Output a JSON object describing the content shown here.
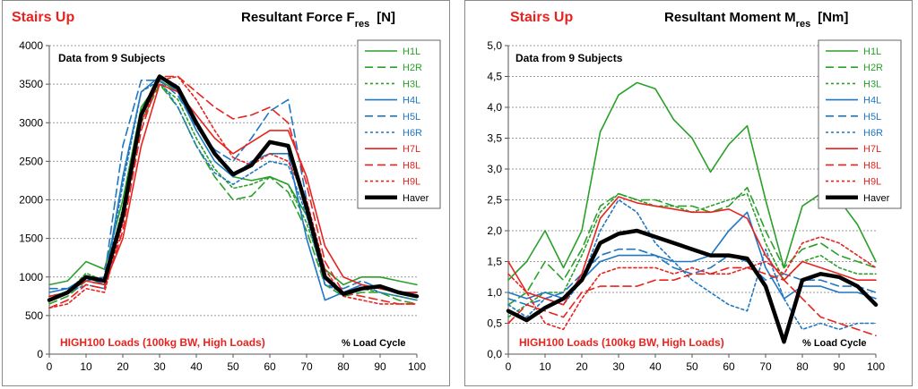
{
  "series_styles": [
    {
      "name": "H1L",
      "color": "#2aa02a",
      "dash": "",
      "width": 1.6
    },
    {
      "name": "H2R",
      "color": "#2aa02a",
      "dash": "9,5",
      "width": 1.6
    },
    {
      "name": "H3L",
      "color": "#2aa02a",
      "dash": "3,3",
      "width": 1.6
    },
    {
      "name": "H4L",
      "color": "#1f77c4",
      "dash": "",
      "width": 1.6
    },
    {
      "name": "H5L",
      "color": "#1f77c4",
      "dash": "9,5",
      "width": 1.6
    },
    {
      "name": "H6R",
      "color": "#1f77c4",
      "dash": "3,3",
      "width": 1.6
    },
    {
      "name": "H7L",
      "color": "#e8231f",
      "dash": "",
      "width": 1.6
    },
    {
      "name": "H8L",
      "color": "#e8231f",
      "dash": "9,5",
      "width": 1.6
    },
    {
      "name": "H9L",
      "color": "#e8231f",
      "dash": "3,3",
      "width": 1.6
    },
    {
      "name": "Haver",
      "color": "#000000",
      "dash": "",
      "width": 4.5
    }
  ],
  "chart_data": [
    {
      "type": "line",
      "activity": "Stairs Up",
      "title": "Resultant Force F",
      "title_subscript": "res",
      "unit": "[N]",
      "subtitle": "Data from 9 Subjects",
      "annotation": "HIGH100 Loads (100kg BW, High Loads)",
      "xlabel": "% Load Cycle",
      "xlim": [
        0,
        100
      ],
      "ylim": [
        0,
        4000
      ],
      "x_ticks": [
        "0",
        "10",
        "20",
        "30",
        "40",
        "50",
        "60",
        "70",
        "80",
        "90",
        "100"
      ],
      "y_ticks": [
        "0",
        "500",
        "1000",
        "1500",
        "2000",
        "2500",
        "3000",
        "3500",
        "4000"
      ],
      "grid": "horizontal-dotted",
      "legend_position": "top-right",
      "x": [
        0,
        5,
        10,
        15,
        20,
        25,
        30,
        35,
        40,
        45,
        50,
        55,
        60,
        65,
        70,
        75,
        80,
        85,
        90,
        95,
        100
      ],
      "series": [
        {
          "name": "H1L",
          "values": [
            900,
            950,
            1200,
            1100,
            2000,
            3200,
            3550,
            3400,
            3000,
            2600,
            2300,
            2250,
            2300,
            2200,
            1800,
            1100,
            900,
            1000,
            1000,
            950,
            900
          ]
        },
        {
          "name": "H2R",
          "values": [
            650,
            750,
            950,
            900,
            1800,
            3000,
            3500,
            3200,
            2700,
            2300,
            2000,
            2050,
            2300,
            2100,
            1600,
            900,
            750,
            800,
            800,
            700,
            650
          ]
        },
        {
          "name": "H3L",
          "values": [
            700,
            800,
            1050,
            950,
            1900,
            3100,
            3500,
            3300,
            2800,
            2400,
            2150,
            2200,
            2300,
            2200,
            1700,
            1000,
            800,
            850,
            800,
            750,
            700
          ]
        },
        {
          "name": "H4L",
          "values": [
            800,
            850,
            1000,
            900,
            2300,
            3400,
            3600,
            3400,
            2900,
            2500,
            2300,
            2500,
            2600,
            2600,
            1500,
            700,
            800,
            900,
            850,
            800,
            800
          ]
        },
        {
          "name": "H5L",
          "values": [
            850,
            850,
            950,
            1000,
            2700,
            3550,
            3550,
            3350,
            2950,
            2650,
            2500,
            2800,
            3150,
            3300,
            2000,
            900,
            850,
            950,
            850,
            800,
            800
          ]
        },
        {
          "name": "H6R",
          "values": [
            750,
            800,
            900,
            850,
            2200,
            3400,
            3550,
            3200,
            2700,
            2350,
            2200,
            2350,
            2500,
            2450,
            1800,
            900,
            800,
            900,
            800,
            750,
            700
          ]
        },
        {
          "name": "H7L",
          "values": [
            750,
            800,
            950,
            900,
            1500,
            2700,
            3500,
            3400,
            3100,
            2800,
            2600,
            2750,
            2900,
            2900,
            2300,
            1400,
            1000,
            900,
            850,
            800,
            800
          ]
        },
        {
          "name": "H8L",
          "values": [
            600,
            700,
            900,
            850,
            1600,
            2900,
            3600,
            3600,
            3400,
            3200,
            3050,
            3100,
            3200,
            3000,
            2200,
            1200,
            800,
            750,
            700,
            650,
            650
          ]
        },
        {
          "name": "H9L",
          "values": [
            600,
            650,
            850,
            800,
            1700,
            3000,
            3550,
            3600,
            3300,
            2900,
            2550,
            2450,
            2600,
            2500,
            2000,
            1100,
            750,
            700,
            650,
            650,
            650
          ]
        },
        {
          "name": "Haver",
          "values": [
            700,
            800,
            1000,
            950,
            1800,
            3100,
            3600,
            3450,
            3000,
            2600,
            2330,
            2450,
            2750,
            2700,
            1900,
            1000,
            780,
            850,
            880,
            800,
            750
          ]
        }
      ]
    },
    {
      "type": "line",
      "activity": "Stairs Up",
      "title": "Resultant Moment M",
      "title_subscript": "res",
      "unit": "[Nm]",
      "subtitle": "Data from 9 Subjects",
      "annotation": "HIGH100 Loads (100kg BW, High Loads)",
      "xlabel": "% Load Cycle",
      "xlim": [
        0,
        100
      ],
      "ylim": [
        0,
        5
      ],
      "x_ticks": [
        "0",
        "10",
        "20",
        "30",
        "40",
        "50",
        "60",
        "70",
        "80",
        "90",
        "100"
      ],
      "y_ticks": [
        "0,0",
        "0,5",
        "1,0",
        "1,5",
        "2,0",
        "2,5",
        "3,0",
        "3,5",
        "4,0",
        "4,5",
        "5,0"
      ],
      "grid": "horizontal-dotted",
      "legend_position": "top-right",
      "x": [
        0,
        5,
        10,
        15,
        20,
        25,
        30,
        35,
        40,
        45,
        50,
        55,
        60,
        65,
        70,
        75,
        80,
        85,
        90,
        95,
        100
      ],
      "series": [
        {
          "name": "H1L",
          "values": [
            1.2,
            1.5,
            2.0,
            1.4,
            2.0,
            3.6,
            4.2,
            4.4,
            4.3,
            3.8,
            3.5,
            2.95,
            3.4,
            3.7,
            2.5,
            1.4,
            2.4,
            2.6,
            2.5,
            2.1,
            1.5
          ]
        },
        {
          "name": "H2R",
          "values": [
            0.8,
            1.0,
            1.5,
            1.2,
            1.7,
            2.4,
            2.6,
            2.5,
            2.5,
            2.4,
            2.4,
            2.3,
            2.4,
            2.7,
            2.0,
            1.4,
            1.7,
            1.8,
            1.6,
            1.5,
            1.4
          ]
        },
        {
          "name": "H3L",
          "values": [
            0.6,
            0.8,
            1.0,
            1.0,
            1.6,
            2.3,
            2.6,
            2.5,
            2.4,
            2.4,
            2.3,
            2.4,
            2.5,
            2.6,
            1.8,
            1.2,
            1.5,
            1.6,
            1.4,
            1.3,
            1.3
          ]
        },
        {
          "name": "H4L",
          "values": [
            1.0,
            0.9,
            1.0,
            0.9,
            1.2,
            1.5,
            1.6,
            1.6,
            1.6,
            1.5,
            1.5,
            1.6,
            2.0,
            2.3,
            1.4,
            0.9,
            1.1,
            1.1,
            1.0,
            1.0,
            0.9
          ]
        },
        {
          "name": "H5L",
          "values": [
            0.9,
            0.8,
            0.9,
            1.0,
            1.3,
            1.6,
            1.7,
            1.7,
            1.6,
            1.4,
            1.3,
            1.4,
            1.6,
            1.5,
            1.2,
            1.3,
            1.2,
            1.2,
            1.1,
            1.1,
            1.0
          ]
        },
        {
          "name": "H6R",
          "values": [
            0.8,
            0.6,
            0.9,
            0.8,
            1.2,
            2.0,
            2.5,
            2.3,
            1.8,
            1.5,
            1.2,
            1.0,
            0.8,
            0.7,
            1.7,
            0.9,
            0.4,
            0.5,
            0.4,
            0.5,
            0.5
          ]
        },
        {
          "name": "H7L",
          "values": [
            1.5,
            1.0,
            0.9,
            0.8,
            1.3,
            2.2,
            2.55,
            2.45,
            2.4,
            2.35,
            2.3,
            2.3,
            2.35,
            2.2,
            1.6,
            1.2,
            1.5,
            1.4,
            1.3,
            1.2,
            1.2
          ]
        },
        {
          "name": "H8L",
          "values": [
            0.5,
            0.8,
            0.7,
            0.6,
            1.0,
            1.1,
            1.1,
            1.1,
            1.2,
            1.2,
            1.3,
            1.3,
            1.4,
            1.4,
            1.3,
            1.2,
            0.9,
            0.6,
            0.5,
            0.4,
            0.3
          ]
        },
        {
          "name": "H9L",
          "values": [
            1.3,
            1.0,
            0.5,
            0.4,
            0.9,
            1.3,
            1.4,
            1.4,
            1.4,
            1.3,
            1.4,
            1.3,
            1.3,
            1.4,
            1.5,
            1.3,
            1.8,
            1.9,
            1.8,
            1.6,
            1.4
          ]
        },
        {
          "name": "Haver",
          "values": [
            0.7,
            0.55,
            0.75,
            0.9,
            1.2,
            1.8,
            1.95,
            2.0,
            1.9,
            1.8,
            1.7,
            1.6,
            1.6,
            1.55,
            1.1,
            0.2,
            1.2,
            1.3,
            1.25,
            1.1,
            0.8
          ]
        }
      ]
    }
  ]
}
